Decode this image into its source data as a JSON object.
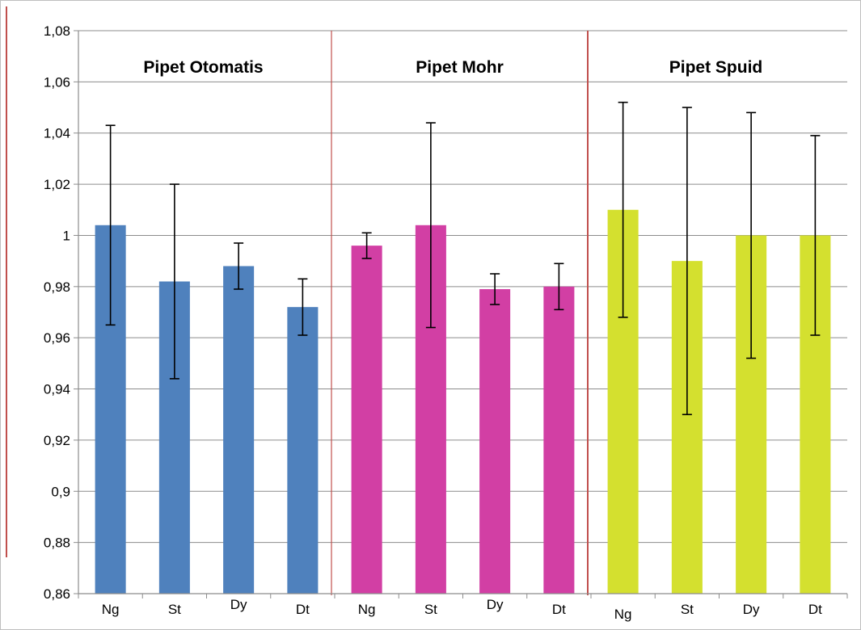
{
  "chart_data": {
    "type": "bar",
    "title": "",
    "xlabel": "",
    "ylabel": "",
    "ylim": [
      0.86,
      1.08
    ],
    "yticks": [
      "0,86",
      "0,88",
      "0,9",
      "0,92",
      "0,94",
      "0,96",
      "0,98",
      "1",
      "1,02",
      "1,04",
      "1,06",
      "1,08"
    ],
    "grid": "horizontal",
    "legend": "none",
    "groups": [
      {
        "name": "Pipet Otomatis",
        "color": "#4f81bd",
        "categories": [
          "Ng",
          "St",
          "Dy",
          "Dt"
        ],
        "values": [
          1.004,
          0.982,
          0.988,
          0.972
        ],
        "err_low": [
          0.965,
          0.944,
          0.979,
          0.961
        ],
        "err_high": [
          1.043,
          1.02,
          0.997,
          0.983
        ]
      },
      {
        "name": "Pipet Mohr",
        "color": "#d23fa4",
        "categories": [
          "Ng",
          "St",
          "Dy",
          "Dt"
        ],
        "values": [
          0.996,
          1.004,
          0.979,
          0.98
        ],
        "err_low": [
          0.991,
          0.964,
          0.973,
          0.971
        ],
        "err_high": [
          1.001,
          1.044,
          0.985,
          0.989
        ]
      },
      {
        "name": "Pipet Spuid",
        "color": "#d4e02f",
        "categories": [
          "Ng",
          "St",
          "Dy",
          "Dt"
        ],
        "values": [
          1.01,
          0.99,
          1.0,
          1.0
        ],
        "err_low": [
          0.968,
          0.93,
          0.952,
          0.961
        ],
        "err_high": [
          1.052,
          1.05,
          1.048,
          1.039
        ]
      }
    ]
  }
}
